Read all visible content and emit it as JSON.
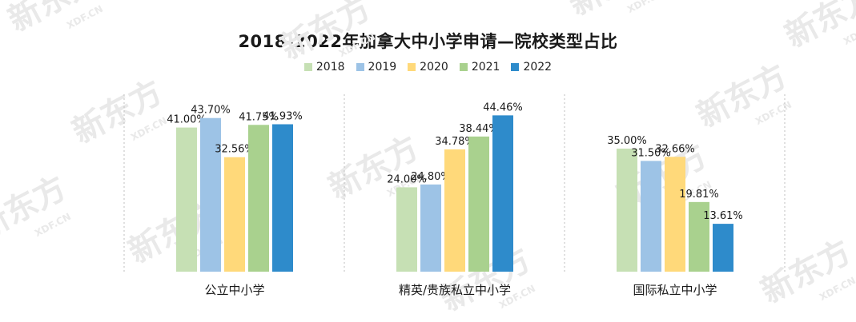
{
  "chart_data": {
    "type": "bar",
    "title": "2018-2022年加拿大中小学申请—院校类型占比",
    "categories": [
      "公立中小学",
      "精英/贵族私立中小学",
      "国际私立中小学"
    ],
    "series": [
      {
        "name": "2018",
        "color": "#c6e0b4",
        "values": [
          41.0,
          24.0,
          35.0
        ],
        "labels": [
          "41.00%",
          "24.00%",
          "35.00%"
        ]
      },
      {
        "name": "2019",
        "color": "#9dc3e6",
        "values": [
          43.7,
          24.8,
          31.5
        ],
        "labels": [
          "43.70%",
          "24.80%",
          "31.50%"
        ]
      },
      {
        "name": "2020",
        "color": "#ffd97a",
        "values": [
          32.56,
          34.78,
          32.66
        ],
        "labels": [
          "32.56%",
          "34.78%",
          "32.66%"
        ]
      },
      {
        "name": "2021",
        "color": "#a9d18e",
        "values": [
          41.75,
          38.44,
          19.81
        ],
        "labels": [
          "41.75%",
          "38.44%",
          "19.81%"
        ]
      },
      {
        "name": "2022",
        "color": "#2e8bcb",
        "values": [
          41.93,
          44.46,
          13.61
        ],
        "labels": [
          "41.93%",
          "44.46%",
          "13.61%"
        ]
      }
    ],
    "ylim": [
      0,
      50
    ],
    "legend_position": "top-center",
    "grid": false
  },
  "watermark": {
    "main": "新东方",
    "sub": "XDF.CN"
  }
}
